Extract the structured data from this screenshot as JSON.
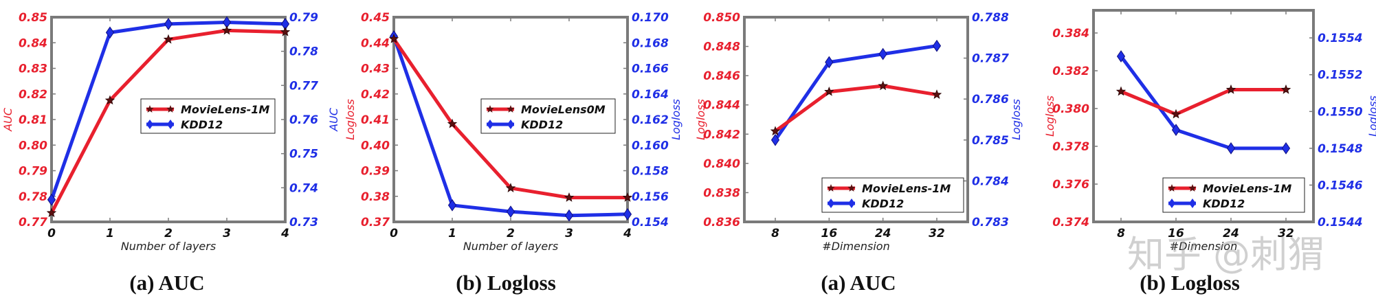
{
  "colors": {
    "left": "#e8202e",
    "right": "#1f2fe6",
    "axis": "#7a7a7a"
  },
  "watermark": "知乎 @刺猬",
  "chart_data": [
    {
      "type": "line",
      "caption": "(a) AUC",
      "xlabel": "Number of layers",
      "ylabel_left": "AUC",
      "ylabel_right": "AUC",
      "categories": [
        "0",
        "1",
        "2",
        "3",
        "4"
      ],
      "ylim_left": [
        0.77,
        0.85
      ],
      "yticks_left": [
        "0.77",
        "0.78",
        "0.79",
        "0.80",
        "0.81",
        "0.82",
        "0.83",
        "0.84",
        "0.85"
      ],
      "ylim_right": [
        0.73,
        0.79
      ],
      "yticks_right": [
        "0.73",
        "0.74",
        "0.75",
        "0.76",
        "0.77",
        "0.78",
        "0.79"
      ],
      "legend_position": "center-right",
      "series": [
        {
          "name": "MovieLens-1M",
          "axis": "left",
          "marker": "star",
          "values": [
            0.7735,
            0.8175,
            0.8413,
            0.8448,
            0.8442
          ]
        },
        {
          "name": "KDD12",
          "axis": "right",
          "marker": "diamond",
          "values": [
            0.7365,
            0.7855,
            0.788,
            0.7885,
            0.788
          ]
        }
      ]
    },
    {
      "type": "line",
      "caption": "(b) Logloss",
      "xlabel": "Number of layers",
      "ylabel_left": "Logloss",
      "ylabel_right": "Logloss",
      "categories": [
        "0",
        "1",
        "2",
        "3",
        "4"
      ],
      "ylim_left": [
        0.37,
        0.45
      ],
      "yticks_left": [
        "0.37",
        "0.38",
        "0.39",
        "0.40",
        "0.41",
        "0.42",
        "0.43",
        "0.44",
        "0.45"
      ],
      "ylim_right": [
        0.154,
        0.17
      ],
      "yticks_right": [
        "0.154",
        "0.156",
        "0.158",
        "0.160",
        "0.162",
        "0.164",
        "0.166",
        "0.168",
        "0.170"
      ],
      "legend_position": "center-right",
      "series": [
        {
          "name": "MovieLens0M",
          "axis": "left",
          "marker": "star",
          "values": [
            0.4415,
            0.4083,
            0.3832,
            0.3795,
            0.3795
          ]
        },
        {
          "name": "KDD12",
          "axis": "right",
          "marker": "diamond",
          "values": [
            0.1685,
            0.1553,
            0.1548,
            0.1545,
            0.1546
          ]
        }
      ]
    },
    {
      "type": "line",
      "caption": "(a) AUC",
      "xlabel": "#Dimension",
      "ylabel_left": "Logloss",
      "ylabel_right": "Logloss",
      "categories": [
        "8",
        "16",
        "24",
        "32"
      ],
      "ylim_left": [
        0.836,
        0.85
      ],
      "yticks_left": [
        "0.836",
        "0.838",
        "0.840",
        "0.842",
        "0.844",
        "0.846",
        "0.848",
        "0.850"
      ],
      "ylim_right": [
        0.783,
        0.788
      ],
      "yticks_right": [
        "0.783",
        "0.784",
        "0.785",
        "0.786",
        "0.787",
        "0.788"
      ],
      "legend_position": "bottom-right",
      "series": [
        {
          "name": "MovieLens-1M",
          "axis": "left",
          "marker": "star",
          "values": [
            0.8422,
            0.8449,
            0.8453,
            0.8447
          ]
        },
        {
          "name": "KDD12",
          "axis": "right",
          "marker": "diamond",
          "values": [
            0.785,
            0.7869,
            0.7871,
            0.7873
          ]
        }
      ]
    },
    {
      "type": "line",
      "caption": "(b) Logloss",
      "xlabel": "#Dimension",
      "ylabel_left": "Logloss",
      "ylabel_right": "Logloss",
      "categories": [
        "8",
        "16",
        "24",
        "32"
      ],
      "ylim_left": [
        0.374,
        0.3852
      ],
      "yticks_left": [
        "0.374",
        "0.376",
        "0.378",
        "0.380",
        "0.382",
        "0.384"
      ],
      "ylim_right": [
        0.1544,
        0.15555
      ],
      "yticks_right": [
        "0.1544",
        "0.1546",
        "0.1548",
        "0.1550",
        "0.1552",
        "0.1554"
      ],
      "legend_position": "bottom-right",
      "series": [
        {
          "name": "MovieLens-1M",
          "axis": "left",
          "marker": "star",
          "values": [
            0.3809,
            0.3797,
            0.381,
            0.381
          ]
        },
        {
          "name": "KDD12",
          "axis": "right",
          "marker": "diamond",
          "values": [
            0.1553,
            0.1549,
            0.1548,
            0.1548
          ]
        }
      ]
    }
  ]
}
